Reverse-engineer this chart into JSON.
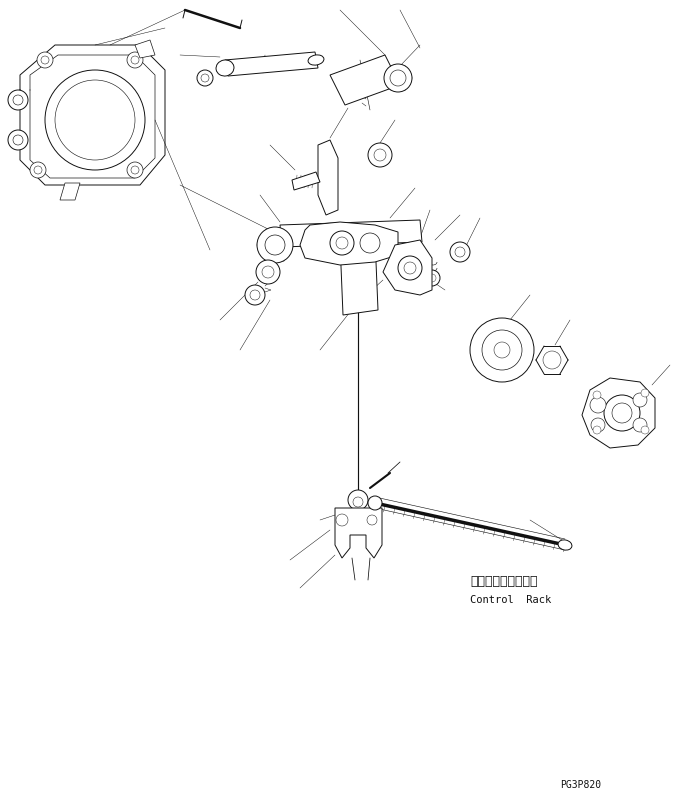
{
  "background_color": "#ffffff",
  "line_color": "#111111",
  "page_code": "PG3P820",
  "label_japanese": "コントロールラック",
  "label_english": "Control  Rack",
  "fig_width": 6.95,
  "fig_height": 7.99,
  "dpi": 100
}
